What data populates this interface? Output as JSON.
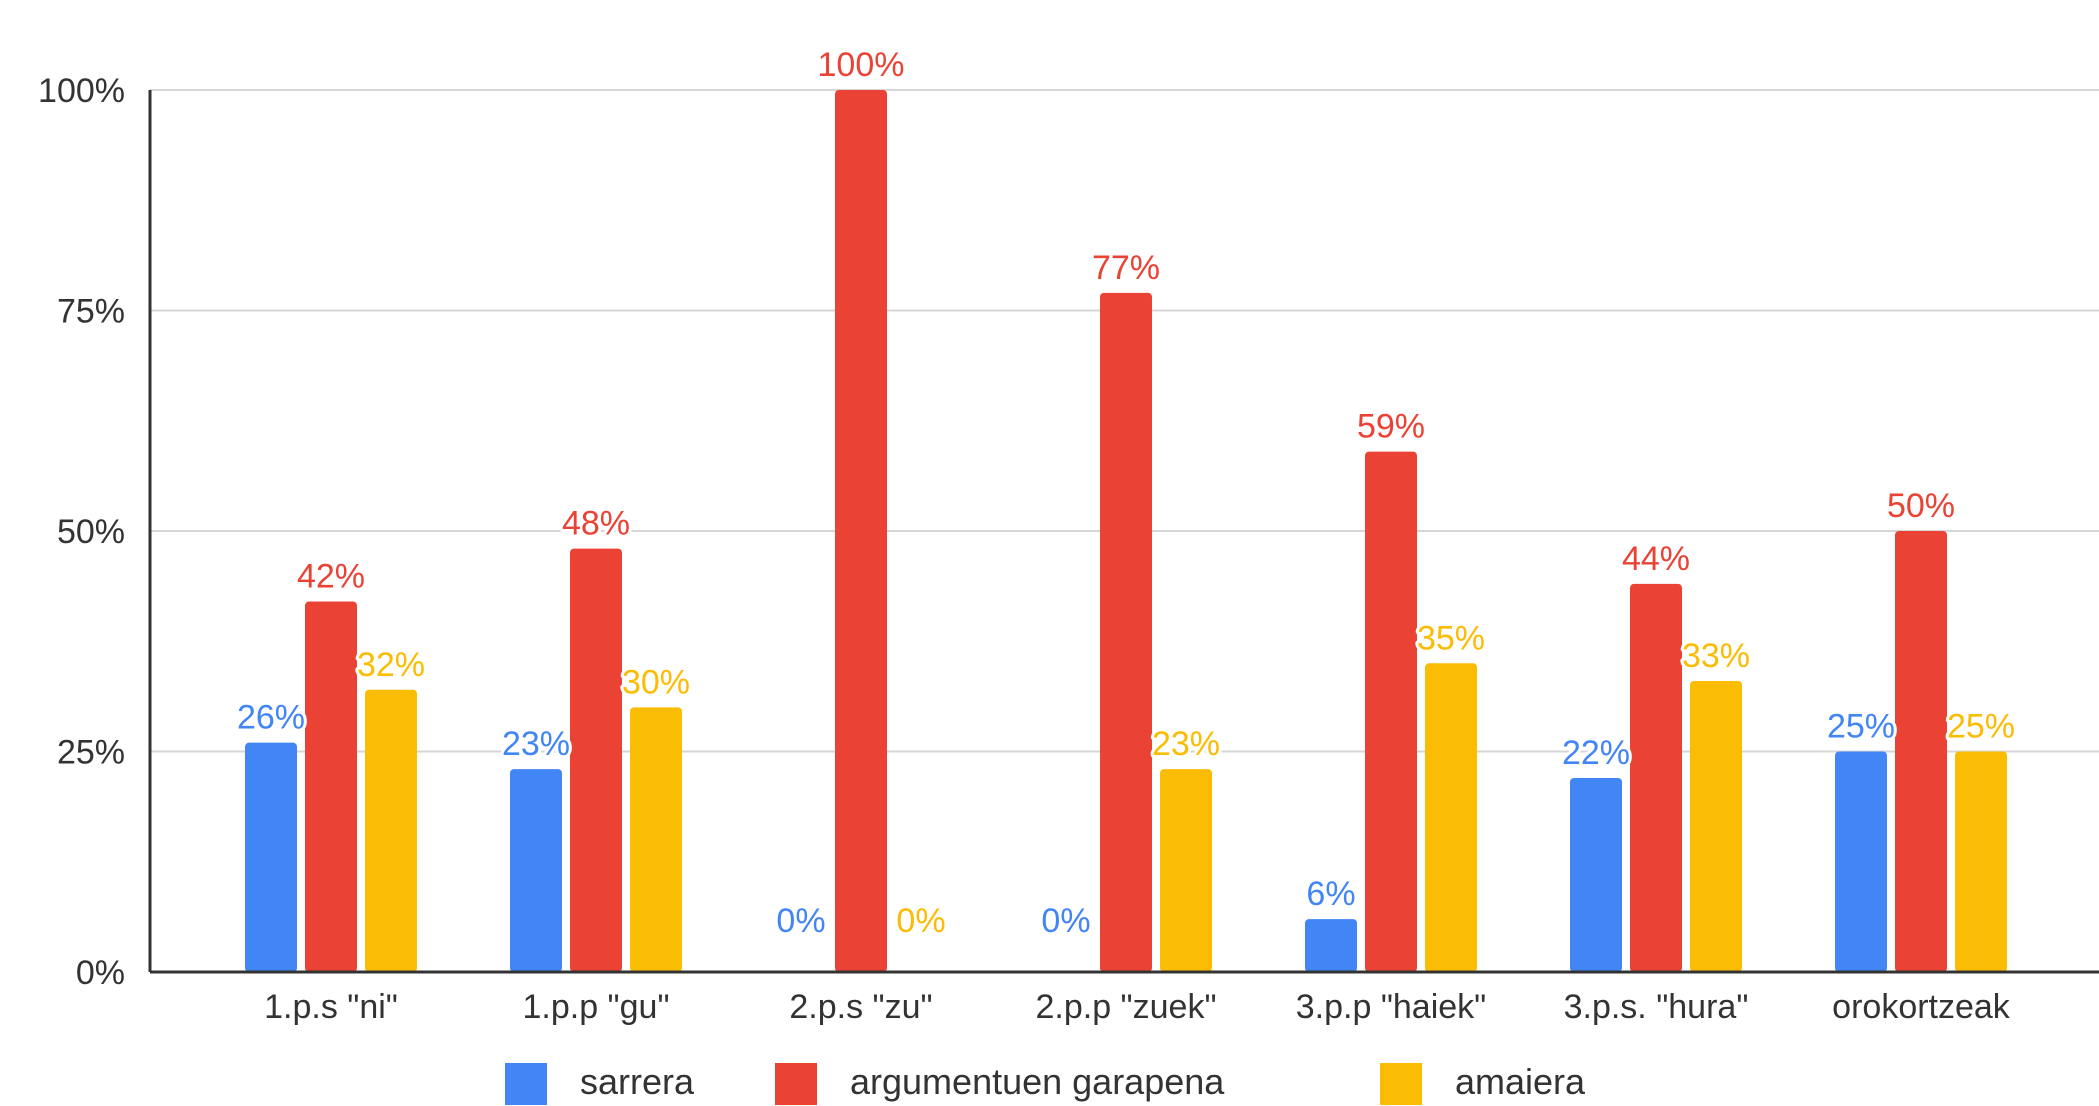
{
  "chart_data": {
    "type": "bar",
    "categories": [
      "1.p.s \"ni\"",
      "1.p.p \"gu\"",
      "2.p.s \"zu\"",
      "2.p.p \"zuek\"",
      "3.p.p \"haiek\"",
      "3.p.s. \"hura\"",
      "orokortzeak"
    ],
    "series": [
      {
        "name": "sarrera",
        "color": "#4285F4",
        "values": [
          26,
          23,
          0,
          0,
          6,
          22,
          25
        ],
        "labels": [
          "26%",
          "23%",
          "0%",
          "0%",
          "6%",
          "22%",
          "25%"
        ]
      },
      {
        "name": "argumentuen garapena",
        "color": "#EA4335",
        "values": [
          42,
          48,
          100,
          77,
          59,
          44,
          50
        ],
        "labels": [
          "42%",
          "48%",
          "100%",
          "77%",
          "59%",
          "44%",
          "50%"
        ]
      },
      {
        "name": "amaiera",
        "color": "#FBBC04",
        "values": [
          32,
          30,
          0,
          23,
          35,
          33,
          25
        ],
        "labels": [
          "32%",
          "30%",
          "0%",
          "23%",
          "35%",
          "33%",
          "25%"
        ]
      }
    ],
    "yticks": [
      {
        "value": 0,
        "label": "0%"
      },
      {
        "value": 25,
        "label": "25%"
      },
      {
        "value": 50,
        "label": "50%"
      },
      {
        "value": 75,
        "label": "75%"
      },
      {
        "value": 100,
        "label": "100%"
      }
    ],
    "ylim": [
      0,
      100
    ],
    "grid": true,
    "legend_position": "bottom"
  }
}
